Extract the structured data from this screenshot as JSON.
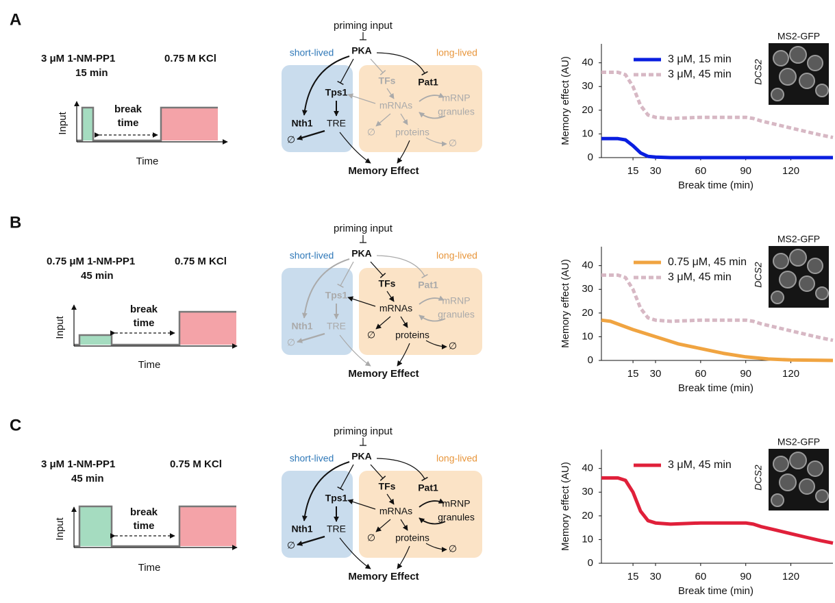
{
  "panels": [
    {
      "letter": "A",
      "drug": "3 μM 1-NM-PP1",
      "duration": "15 min",
      "salt": "0.75 M KCl"
    },
    {
      "letter": "B",
      "drug": "0.75 μM 1-NM-PP1",
      "duration": "45 min",
      "salt": "0.75 M KCl"
    },
    {
      "letter": "C",
      "drug": "3 μM 1-NM-PP1",
      "duration": "45 min",
      "salt": "0.75 M KCl"
    }
  ],
  "schematic": {
    "y_label": "Input",
    "x_label": "Time",
    "break_line_1": "break",
    "break_line_2": "time"
  },
  "diagram": {
    "priming": "priming input",
    "short_lived": "short-lived",
    "long_lived": "long-lived",
    "nodes": {
      "pka": "PKA",
      "tps1": "Tps1",
      "nth1": "Nth1",
      "tre": "TRE",
      "null_b": "∅",
      "tfs": "TFs",
      "pat1": "Pat1",
      "mrnas": "mRNAs",
      "mrnp": "mRNP",
      "granules": "granules",
      "null_m": "∅",
      "proteins": "proteins",
      "null_p": "∅",
      "memory": "Memory Effect"
    }
  },
  "inset": {
    "title": "MS2-GFP",
    "gene": "DCS2"
  },
  "chart_data": [
    {
      "type": "line",
      "xlabel": "Break time (min)",
      "ylabel": "Memory effect (AU)",
      "xlim": [
        -6,
        148
      ],
      "ylim": [
        0,
        48
      ],
      "xticks": [
        15,
        30,
        60,
        90,
        120
      ],
      "yticks": [
        0,
        10,
        20,
        30,
        40
      ],
      "series": [
        {
          "name": "3 μM, 15 min",
          "color": "#0a1fe0",
          "style": "solid",
          "x": [
            -6,
            0,
            5,
            10,
            15,
            20,
            25,
            30,
            40,
            148
          ],
          "values": [
            8,
            8,
            8,
            7.5,
            5,
            2,
            0.5,
            0.2,
            0,
            0
          ]
        },
        {
          "name": "3 μM, 45 min",
          "color": "#d7b8c4",
          "style": "dashed",
          "x": [
            -6,
            0,
            5,
            10,
            15,
            20,
            25,
            30,
            40,
            60,
            80,
            90,
            95,
            100,
            110,
            120,
            130,
            140,
            148
          ],
          "values": [
            36,
            36,
            36,
            35,
            30,
            22,
            18,
            17,
            16.5,
            17,
            17,
            17,
            16.5,
            15.5,
            14,
            12.5,
            11,
            9.5,
            8.5
          ]
        }
      ]
    },
    {
      "type": "line",
      "xlabel": "Break time (min)",
      "ylabel": "Memory effect (AU)",
      "xlim": [
        -6,
        148
      ],
      "ylim": [
        0,
        48
      ],
      "xticks": [
        15,
        30,
        60,
        90,
        120
      ],
      "yticks": [
        0,
        10,
        20,
        30,
        40
      ],
      "series": [
        {
          "name": "0.75 μM, 45 min",
          "color": "#f0a441",
          "style": "solid",
          "x": [
            -6,
            0,
            15,
            30,
            45,
            60,
            75,
            90,
            105,
            120,
            148
          ],
          "values": [
            17,
            16.5,
            13,
            10,
            7,
            5,
            3,
            1.5,
            0.6,
            0.2,
            0
          ]
        },
        {
          "name": "3 μM, 45 min",
          "color": "#d7b8c4",
          "style": "dashed",
          "x": [
            -6,
            0,
            5,
            10,
            15,
            20,
            25,
            30,
            40,
            60,
            80,
            90,
            95,
            100,
            110,
            120,
            130,
            140,
            148
          ],
          "values": [
            36,
            36,
            36,
            35,
            30,
            22,
            18,
            17,
            16.5,
            17,
            17,
            17,
            16.5,
            15.5,
            14,
            12.5,
            11,
            9.5,
            8.5
          ]
        }
      ]
    },
    {
      "type": "line",
      "xlabel": "Break time (min)",
      "ylabel": "Memory effect (AU)",
      "xlim": [
        -6,
        148
      ],
      "ylim": [
        0,
        48
      ],
      "xticks": [
        15,
        30,
        60,
        90,
        120
      ],
      "yticks": [
        0,
        10,
        20,
        30,
        40
      ],
      "series": [
        {
          "name": "3 μM, 45 min",
          "color": "#e0203a",
          "style": "solid",
          "x": [
            -6,
            0,
            5,
            10,
            15,
            20,
            25,
            30,
            40,
            60,
            80,
            90,
            95,
            100,
            110,
            120,
            130,
            140,
            148
          ],
          "values": [
            36,
            36,
            36,
            35,
            30,
            22,
            18,
            17,
            16.5,
            17,
            17,
            17,
            16.5,
            15.5,
            14,
            12.5,
            11,
            9.5,
            8.5
          ]
        }
      ]
    }
  ]
}
